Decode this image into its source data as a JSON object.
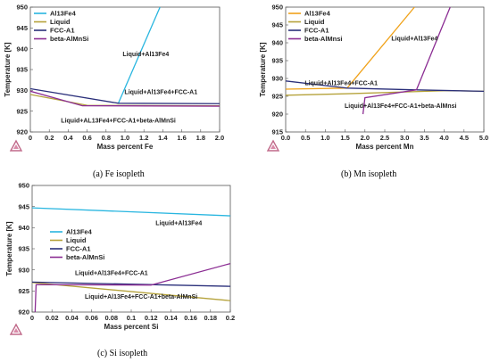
{
  "chart_data": [
    {
      "id": "fe",
      "type": "line",
      "caption_letter": "(a)",
      "caption_text": "Fe isopleth",
      "xlabel": "Mass percent Fe",
      "ylabel": "Temperature [K]",
      "xlim": [
        0,
        2.0
      ],
      "ylim": [
        920,
        950
      ],
      "xticks": [
        "0",
        "0.2",
        "0.4",
        "0.6",
        "0.8",
        "1.0",
        "1.2",
        "1.4",
        "1.6",
        "1.8",
        "2.0"
      ],
      "yticks": [
        "920",
        "925",
        "930",
        "935",
        "940",
        "945",
        "950"
      ],
      "legend": [
        "Al13Fe4",
        "Liquid",
        "FCC-A1",
        "beta-AlMnSi"
      ],
      "series": [
        {
          "name": "Al13Fe4",
          "color": "#29b6e0",
          "points": [
            [
              0.93,
              926.9
            ],
            [
              1.37,
              950
            ]
          ]
        },
        {
          "name": "Liquid",
          "color": "#b5a23a",
          "points": [
            [
              0,
              929.0
            ],
            [
              0.6,
              926.4
            ],
            [
              2.0,
              926.3
            ]
          ]
        },
        {
          "name": "FCC-A1",
          "color": "#2a2f7a",
          "points": [
            [
              0,
              930.4
            ],
            [
              0.93,
              926.9
            ],
            [
              2.0,
              926.8
            ]
          ]
        },
        {
          "name": "beta-AlMnSi",
          "color": "#8b2d93",
          "points": [
            [
              0,
              929.8
            ],
            [
              0.55,
              926.3
            ],
            [
              2.0,
              926.2
            ]
          ]
        }
      ],
      "annotations": [
        {
          "text": "Liquid+Al13Fe4",
          "x": 1.22,
          "y": 938.2
        },
        {
          "text": "Liquid+Al13Fe4+FCC-A1",
          "x": 1.38,
          "y": 929.1
        },
        {
          "text": "Liquid+AL13Fe4+FCC-A1+beta-AlMnSi",
          "x": 0.93,
          "y": 922.3
        }
      ]
    },
    {
      "id": "mn",
      "type": "line",
      "caption_letter": "(b)",
      "caption_text": "Mn isopleth",
      "xlabel": "Mass percent Mn",
      "ylabel": "Temperature [K]",
      "xlim": [
        0,
        5.0
      ],
      "ylim": [
        915,
        950
      ],
      "xticks": [
        "0.0",
        "0.5",
        "1.0",
        "1.5",
        "2.0",
        "2.5",
        "3.0",
        "3.5",
        "4.0",
        "4.5",
        "5.0"
      ],
      "yticks": [
        "915",
        "920",
        "925",
        "930",
        "935",
        "940",
        "945",
        "950"
      ],
      "legend": [
        "Al13Fe4",
        "Liquid",
        "FCC-A1",
        "beta-AlMnsi"
      ],
      "series": [
        {
          "name": "Al13Fe4",
          "color": "#f0a21a",
          "points": [
            [
              0,
              927.0
            ],
            [
              1.55,
              927.3
            ],
            [
              3.25,
              950
            ]
          ]
        },
        {
          "name": "Liquid",
          "color": "#b5a23a",
          "points": [
            [
              0,
              925.3
            ],
            [
              1.5,
              925.7
            ],
            [
              4.1,
              926.6
            ],
            [
              5.0,
              926.4
            ]
          ]
        },
        {
          "name": "FCC-A1",
          "color": "#2a2f7a",
          "points": [
            [
              0,
              929.3
            ],
            [
              1.55,
              927.3
            ],
            [
              3.3,
              926.8
            ],
            [
              5.0,
              926.4
            ]
          ]
        },
        {
          "name": "beta-AlMnsi",
          "color": "#8b2d93",
          "points": [
            [
              1.95,
              920.0
            ],
            [
              2.0,
              924.6
            ],
            [
              3.3,
              926.8
            ],
            [
              4.15,
              950
            ]
          ]
        }
      ],
      "annotations": [
        {
          "text": "Liquid+Al13Fe4",
          "x": 3.25,
          "y": 940.6
        },
        {
          "text": "Liquid+Al13Fe4+FCC-A1",
          "x": 1.4,
          "y": 928.1
        },
        {
          "text": "Liquid+Al13Fe4+FCC-A1+beta-AlMnsi",
          "x": 2.9,
          "y": 921.8
        }
      ]
    },
    {
      "id": "si",
      "type": "line",
      "caption_letter": "(c)",
      "caption_text": "Si isopleth",
      "xlabel": "Mass percent Si",
      "ylabel": "Temperature [K]",
      "xlim": [
        0,
        0.2
      ],
      "ylim": [
        920,
        950
      ],
      "xticks": [
        "0",
        "0.02",
        "0.04",
        "0.06",
        "0.08",
        "0.1",
        "0.12",
        "0.14",
        "0.16",
        "0.18",
        "0.2"
      ],
      "yticks": [
        "920",
        "925",
        "930",
        "935",
        "940",
        "945",
        "950"
      ],
      "legend": [
        "Al13Fe4",
        "Liquid",
        "FCC-A1",
        "beta-AlMnSi"
      ],
      "series": [
        {
          "name": "Al13Fe4",
          "color": "#29b6e0",
          "points": [
            [
              0,
              944.7
            ],
            [
              0.2,
              942.8
            ]
          ]
        },
        {
          "name": "Liquid",
          "color": "#b5a23a",
          "points": [
            [
              0,
              927.0
            ],
            [
              0.2,
              922.7
            ]
          ]
        },
        {
          "name": "FCC-A1",
          "color": "#2a2f7a",
          "points": [
            [
              0,
              927.1
            ],
            [
              0.2,
              926.1
            ]
          ]
        },
        {
          "name": "beta-AlMnSi",
          "color": "#8b2d93",
          "points": [
            [
              0.003,
              920
            ],
            [
              0.004,
              926.5
            ],
            [
              0.12,
              926.4
            ],
            [
              0.2,
              931.5
            ]
          ]
        }
      ],
      "annotations": [
        {
          "text": "Liquid+Al13Fe4",
          "x": 0.148,
          "y": 940.6
        },
        {
          "text": "Liquid+Al13Fe4+FCC-A1",
          "x": 0.08,
          "y": 928.8
        },
        {
          "text": "Liquid+Al13Fe4+FCC-A1+beta-AlMnSi",
          "x": 0.11,
          "y": 923.2
        }
      ]
    }
  ]
}
